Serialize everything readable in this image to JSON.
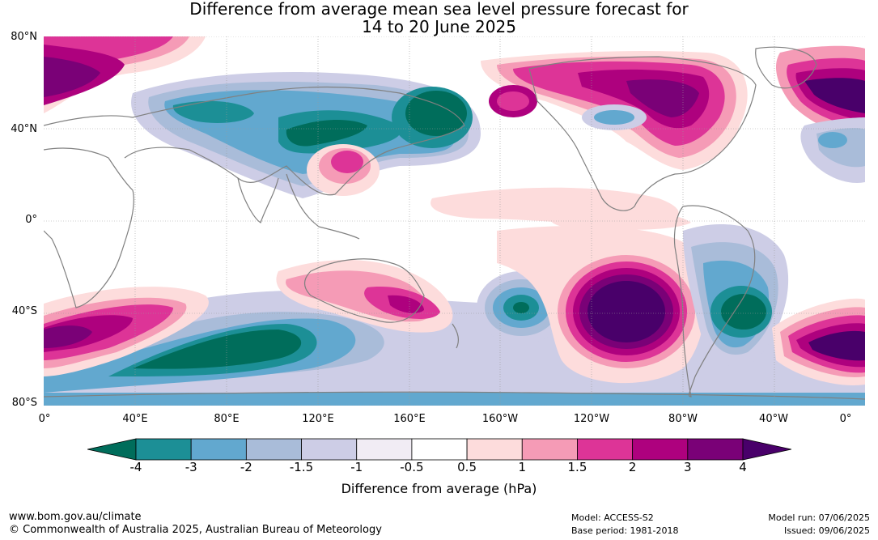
{
  "title": {
    "line1": "Difference from average mean sea level pressure forecast for",
    "line2": "14 to 20 June 2025"
  },
  "axes": {
    "lat_labels": [
      "80°N",
      "40°N",
      "0°",
      "40°S",
      "80°S"
    ],
    "lon_labels": [
      "0°",
      "40°E",
      "80°E",
      "120°E",
      "160°E",
      "160°W",
      "120°W",
      "80°W",
      "40°W",
      "0°"
    ]
  },
  "colorbar": {
    "label": "Difference from average (hPa)",
    "ticks": [
      "-4",
      "-3",
      "-2",
      "-1.5",
      "-1",
      "-0.5",
      "0.5",
      "1",
      "1.5",
      "2",
      "3",
      "4"
    ],
    "colors": [
      "#006d5b",
      "#1c8f96",
      "#62a8cf",
      "#a9bcd9",
      "#cdcde6",
      "#f1ecf4",
      "#ffffff",
      "#fddcdc",
      "#f59bb6",
      "#dd3497",
      "#ae017e",
      "#7a0177",
      "#49006a"
    ]
  },
  "footer": {
    "url": "www.bom.gov.au/climate",
    "copyright": "© Commonwealth of Australia 2025, Australian Bureau of Meteorology",
    "model": "Model: ACCESS-S2",
    "base_period": "Base period: 1981-2018",
    "model_run": "Model run: 07/06/2025",
    "issued": "Issued: 09/06/2025"
  }
}
